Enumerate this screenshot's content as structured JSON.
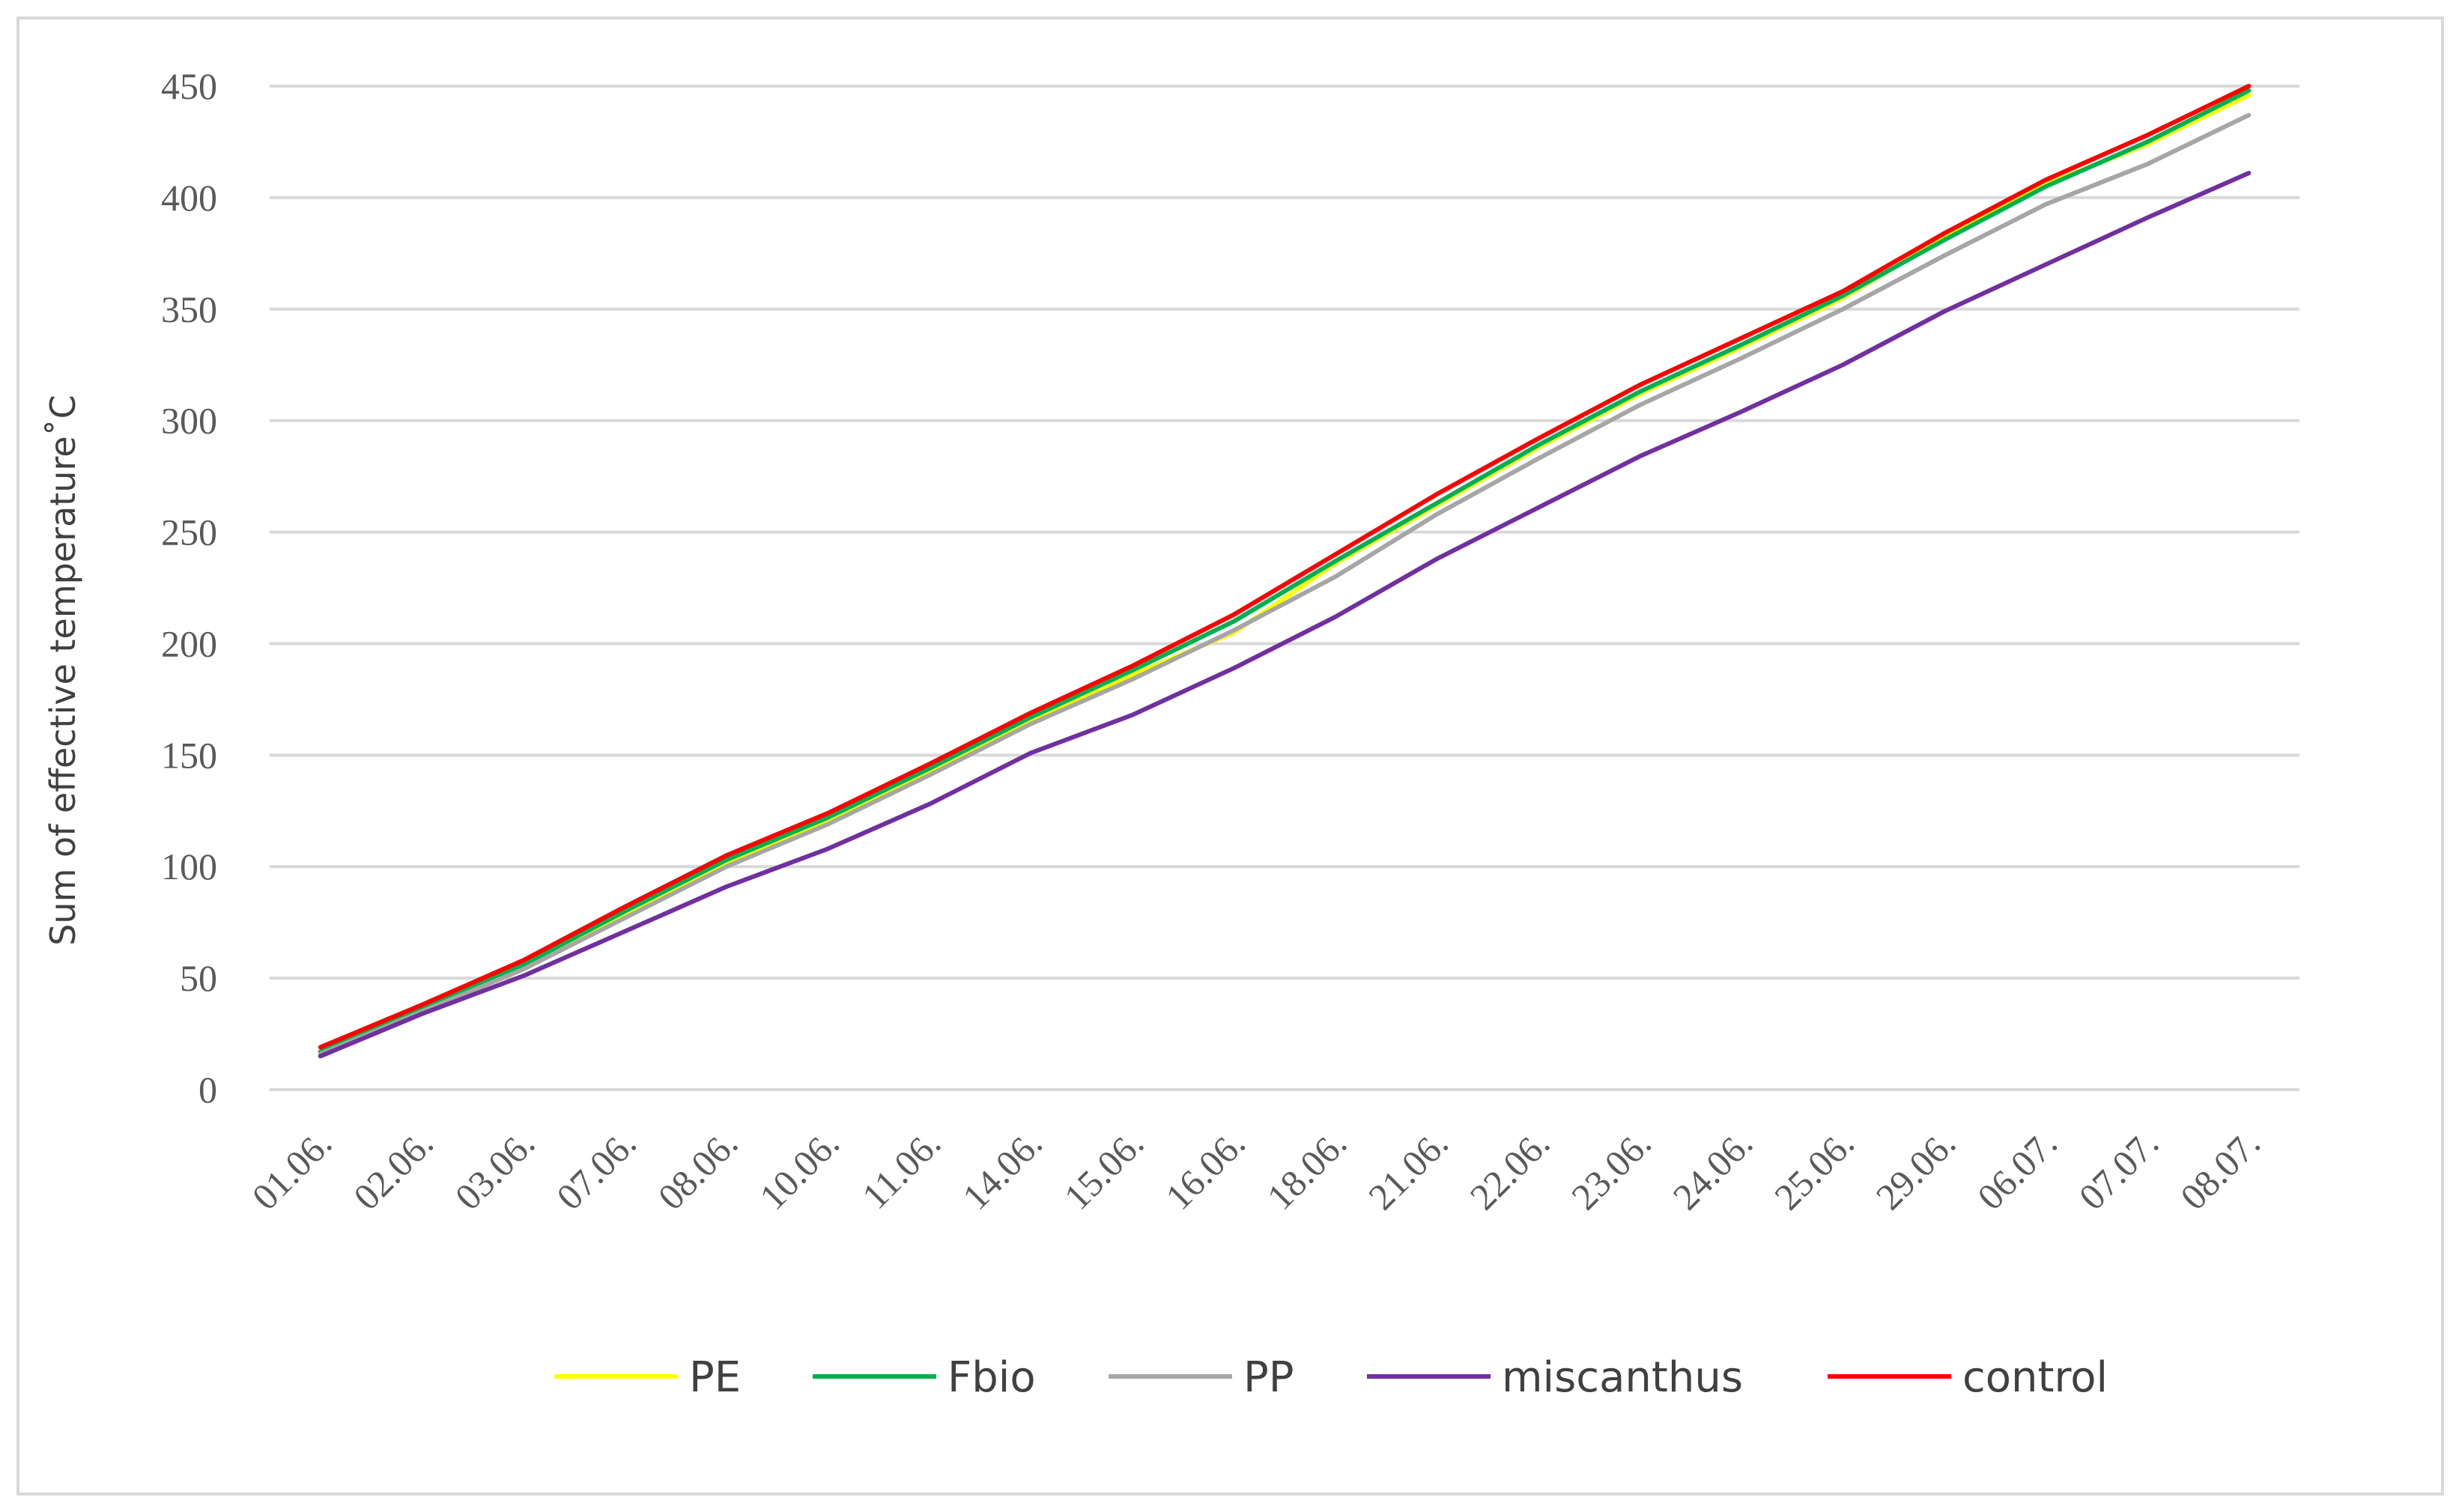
{
  "chart_data": {
    "type": "line",
    "title": "",
    "xlabel": "",
    "ylabel": "Sum of effective temperature˚C",
    "ylim": [
      0,
      450
    ],
    "yticks": [
      0,
      50,
      100,
      150,
      200,
      250,
      300,
      350,
      400,
      450
    ],
    "grid": "horizontal",
    "legend_position": "bottom",
    "categories": [
      "01.06.",
      "02.06.",
      "03.06.",
      "07.06.",
      "08.06.",
      "10.06.",
      "11.06.",
      "14.06.",
      "15.06.",
      "16.06.",
      "18.06.",
      "21.06.",
      "22.06.",
      "23.06.",
      "24.06.",
      "25.06.",
      "29.06.",
      "06.07.",
      "07.07.",
      "08.07."
    ],
    "series": [
      {
        "name": "PE",
        "color": "#ffff00",
        "values": [
          17,
          36,
          55,
          78,
          101,
          120,
          142,
          166,
          186,
          205,
          236,
          262,
          288,
          312,
          333,
          355,
          382,
          406,
          424,
          446
        ]
      },
      {
        "name": "Fbio",
        "color": "#00b050",
        "values": [
          17,
          37,
          56,
          80,
          103,
          122,
          144,
          167,
          188,
          210,
          237,
          263,
          289,
          313,
          334,
          356,
          381,
          405,
          425,
          448
        ]
      },
      {
        "name": "PP",
        "color": "#a6a6a6",
        "values": [
          16,
          35,
          54,
          77,
          100,
          119,
          141,
          164,
          184,
          206,
          230,
          258,
          283,
          307,
          328,
          350,
          374,
          397,
          415,
          437
        ]
      },
      {
        "name": "miscanthus",
        "color": "#7030a0",
        "values": [
          15,
          34,
          51,
          71,
          91,
          108,
          128,
          151,
          168,
          189,
          212,
          238,
          261,
          284,
          304,
          325,
          349,
          370,
          391,
          411
        ]
      },
      {
        "name": "control",
        "color": "#ff0000",
        "values": [
          19,
          38,
          58,
          82,
          105,
          124,
          146,
          169,
          190,
          213,
          240,
          267,
          292,
          316,
          337,
          358,
          384,
          408,
          428,
          450
        ]
      }
    ]
  }
}
